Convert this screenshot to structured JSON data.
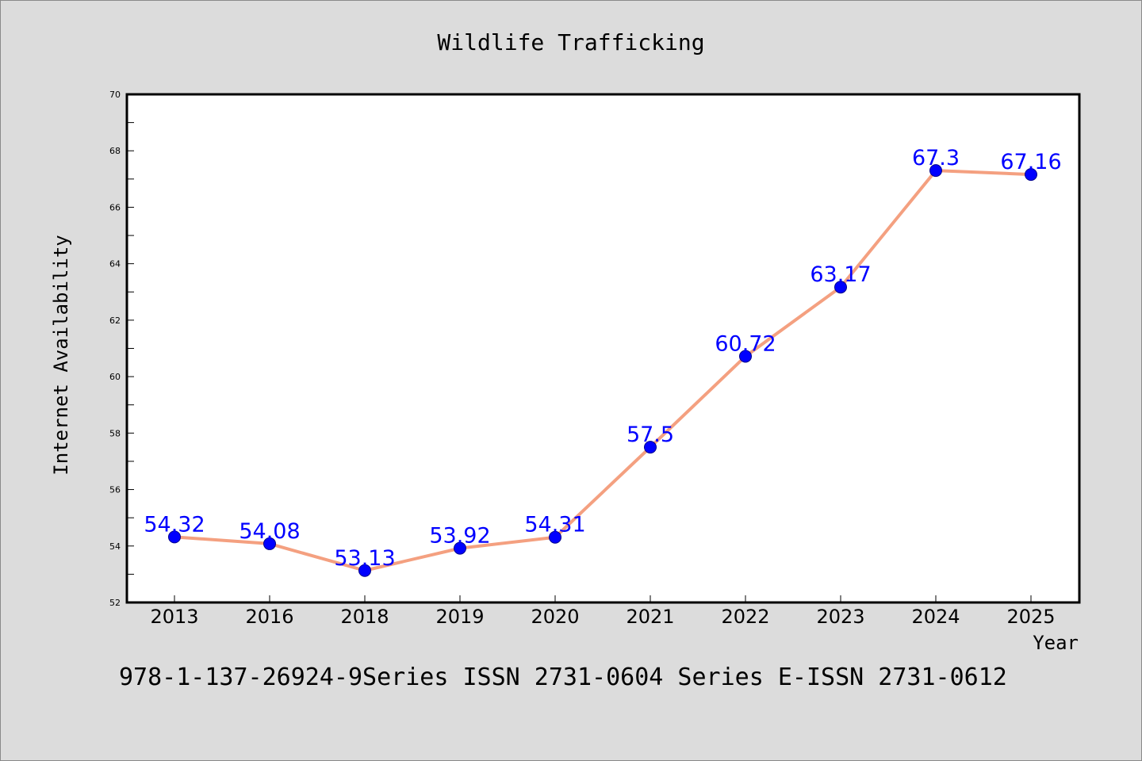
{
  "chart_data": {
    "type": "line",
    "title": "Wildlife Trafficking",
    "xlabel": "Year",
    "ylabel": "Internet Availability",
    "categories": [
      "2013",
      "2016",
      "2018",
      "2019",
      "2020",
      "2021",
      "2022",
      "2023",
      "2024",
      "2025"
    ],
    "values": [
      54.32,
      54.08,
      53.13,
      53.92,
      54.31,
      57.5,
      60.72,
      63.17,
      67.3,
      67.16
    ],
    "data_labels": [
      "54.32",
      "54.08",
      "53.13",
      "53.92",
      "54.31",
      "57.5",
      "60.72",
      "63.17",
      "67.3",
      "67.16"
    ],
    "ylim": [
      52,
      70
    ],
    "yticks": [
      "52",
      "54",
      "56",
      "58",
      "60",
      "62",
      "64",
      "66",
      "68",
      "70"
    ],
    "grid": false,
    "line_color": "#f4a080",
    "marker_color": "#0000ff",
    "label_color": "#0000ff"
  },
  "footer": "978-1-137-26924-9Series ISSN 2731-0604 Series E-ISSN 2731-0612"
}
